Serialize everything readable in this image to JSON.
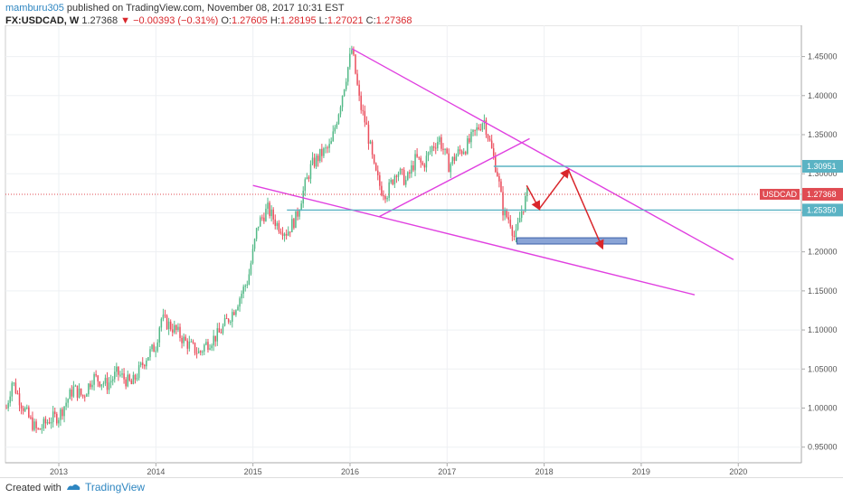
{
  "header": {
    "author": "mamburu305",
    "published_text": "published on TradingView.com, November 08, 2017 10:31 EST",
    "symbol": "FX:USDCAD, W",
    "last": "1.27368",
    "change": "−0.00393 (−0.31%)",
    "o_label": "O:",
    "o_value": "1.27605",
    "h_label": "H:",
    "h_value": "1.28195",
    "l_label": "L:",
    "l_value": "1.27021",
    "c_label": "C:",
    "c_value": "1.27368"
  },
  "chart_data": {
    "type": "candlestick",
    "symbol": "USDCAD",
    "ylim": [
      0.93,
      1.49
    ],
    "y_ticks": [
      0.95,
      1.0,
      1.05,
      1.1,
      1.15,
      1.2,
      1.25,
      1.3,
      1.35,
      1.4,
      1.45
    ],
    "y_tick_labels": [
      "0.95000",
      "1.00000",
      "1.05000",
      "1.10000",
      "1.15000",
      "1.20000",
      "1.25000",
      "1.30000",
      "1.35000",
      "1.40000",
      "1.45000"
    ],
    "x_ticks": [
      2013,
      2014,
      2015,
      2016,
      2017,
      2018,
      2019,
      2020
    ],
    "x_tick_labels": [
      "2013",
      "2014",
      "2015",
      "2016",
      "2017",
      "2018",
      "2019",
      "2020"
    ],
    "xlim": [
      2012.45,
      2020.65
    ],
    "anchors": [
      [
        2012.46,
        1.0
      ],
      [
        2012.52,
        1.035
      ],
      [
        2012.6,
        1.01
      ],
      [
        2012.7,
        0.985
      ],
      [
        2012.78,
        0.97
      ],
      [
        2012.9,
        0.985
      ],
      [
        2013.0,
        0.99
      ],
      [
        2013.15,
        1.025
      ],
      [
        2013.25,
        1.015
      ],
      [
        2013.35,
        1.04
      ],
      [
        2013.5,
        1.03
      ],
      [
        2013.6,
        1.045
      ],
      [
        2013.75,
        1.03
      ],
      [
        2013.9,
        1.065
      ],
      [
        2014.0,
        1.08
      ],
      [
        2014.05,
        1.115
      ],
      [
        2014.2,
        1.1
      ],
      [
        2014.3,
        1.085
      ],
      [
        2014.45,
        1.07
      ],
      [
        2014.5,
        1.08
      ],
      [
        2014.65,
        1.095
      ],
      [
        2014.8,
        1.125
      ],
      [
        2014.95,
        1.165
      ],
      [
        2015.05,
        1.235
      ],
      [
        2015.15,
        1.255
      ],
      [
        2015.25,
        1.235
      ],
      [
        2015.35,
        1.225
      ],
      [
        2015.45,
        1.245
      ],
      [
        2015.5,
        1.27
      ],
      [
        2015.6,
        1.31
      ],
      [
        2015.7,
        1.325
      ],
      [
        2015.8,
        1.335
      ],
      [
        2015.9,
        1.39
      ],
      [
        2016.02,
        1.46
      ],
      [
        2016.1,
        1.39
      ],
      [
        2016.17,
        1.36
      ],
      [
        2016.25,
        1.305
      ],
      [
        2016.32,
        1.28
      ],
      [
        2016.38,
        1.275
      ],
      [
        2016.48,
        1.305
      ],
      [
        2016.58,
        1.29
      ],
      [
        2016.68,
        1.32
      ],
      [
        2016.75,
        1.31
      ],
      [
        2016.85,
        1.335
      ],
      [
        2016.92,
        1.345
      ],
      [
        2017.02,
        1.31
      ],
      [
        2017.1,
        1.325
      ],
      [
        2017.2,
        1.335
      ],
      [
        2017.3,
        1.355
      ],
      [
        2017.38,
        1.37
      ],
      [
        2017.45,
        1.335
      ],
      [
        2017.52,
        1.3
      ],
      [
        2017.58,
        1.25
      ],
      [
        2017.65,
        1.24
      ],
      [
        2017.7,
        1.215
      ],
      [
        2017.76,
        1.25
      ],
      [
        2017.83,
        1.275
      ]
    ],
    "horizontal_levels": [
      {
        "price": 1.30951,
        "label": "1.30951",
        "color": "#5ab3c4"
      },
      {
        "price": 1.2535,
        "label": "1.25350",
        "color": "#5ab3c4"
      }
    ],
    "current_price": {
      "price": 1.27368,
      "label": "1.27368",
      "tag": "USDCAD",
      "color": "#e04b52"
    },
    "trendlines": [
      {
        "from": [
          2016.02,
          1.46
        ],
        "to": [
          2019.95,
          1.19
        ],
        "color": "#e040e0"
      },
      {
        "from": [
          2015.0,
          1.285
        ],
        "to": [
          2019.55,
          1.145
        ],
        "color": "#e040e0"
      },
      {
        "from": [
          2016.3,
          1.245
        ],
        "to": [
          2017.85,
          1.345
        ],
        "color": "#e040e0"
      }
    ],
    "projection_arrows": [
      {
        "points": [
          [
            2017.82,
            1.285
          ],
          [
            2017.95,
            1.255
          ],
          [
            2018.25,
            1.305
          ],
          [
            2018.6,
            1.205
          ]
        ],
        "color": "#d9262b"
      }
    ],
    "target_zone": {
      "x0": 2017.72,
      "x1": 2018.85,
      "y0": 1.21,
      "y1": 1.218,
      "color": "#8aa4d6"
    }
  },
  "footer": {
    "created_with": "Created with",
    "brand": "TradingView"
  }
}
